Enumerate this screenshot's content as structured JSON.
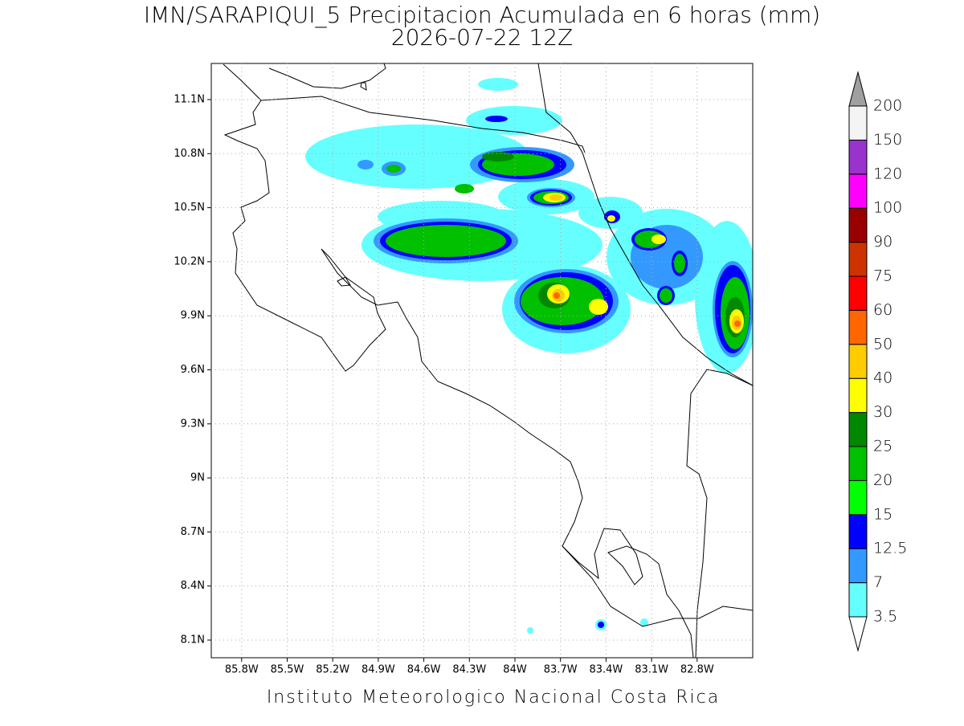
{
  "header": {
    "title": "IMN/SARAPIQUI_5 Precipitacion Acumulada en 6 horas (mm)",
    "subtitle": "2026-07-22 12Z"
  },
  "map": {
    "lat_ticks": [
      {
        "value": 11.1,
        "label": "11.1N"
      },
      {
        "value": 10.8,
        "label": "10.8N"
      },
      {
        "value": 10.5,
        "label": "10.5N"
      },
      {
        "value": 10.2,
        "label": "10.2N"
      },
      {
        "value": 9.9,
        "label": "9.9N"
      },
      {
        "value": 9.6,
        "label": "9.6N"
      },
      {
        "value": 9.3,
        "label": "9.3N"
      },
      {
        "value": 9,
        "label": "9N"
      },
      {
        "value": 8.7,
        "label": "8.7N"
      },
      {
        "value": 8.4,
        "label": "8.4N"
      },
      {
        "value": 8.1,
        "label": "8.1N"
      }
    ],
    "lon_ticks": [
      {
        "value": -85.8,
        "label": "85.8W"
      },
      {
        "value": -85.5,
        "label": "85.5W"
      },
      {
        "value": -85.2,
        "label": "85.2W"
      },
      {
        "value": -84.9,
        "label": "84.9W"
      },
      {
        "value": -84.6,
        "label": "84.6W"
      },
      {
        "value": -84.3,
        "label": "84.3W"
      },
      {
        "value": -84,
        "label": "84W"
      },
      {
        "value": -83.7,
        "label": "83.7W"
      },
      {
        "value": -83.4,
        "label": "83.4W"
      },
      {
        "value": -83.1,
        "label": "83.1W"
      },
      {
        "value": -82.8,
        "label": "82.8W"
      }
    ],
    "grid": true
  },
  "colorbar": {
    "levels": [
      3.5,
      7,
      12.5,
      15,
      20,
      25,
      30,
      40,
      50,
      60,
      75,
      90,
      100,
      120,
      150,
      200
    ],
    "colors": [
      "#ffffff",
      "#66ffff",
      "#3399ff",
      "#0000ff",
      "#00ff00",
      "#00c000",
      "#008800",
      "#ffff00",
      "#ffcc00",
      "#ff6600",
      "#ff0000",
      "#cc3300",
      "#990000",
      "#ff00ff",
      "#9933cc",
      "#f4f4f4",
      "#a0a0a0"
    ]
  },
  "footer": {
    "text": "Instituto Meteorologico Nacional Costa Rica"
  }
}
